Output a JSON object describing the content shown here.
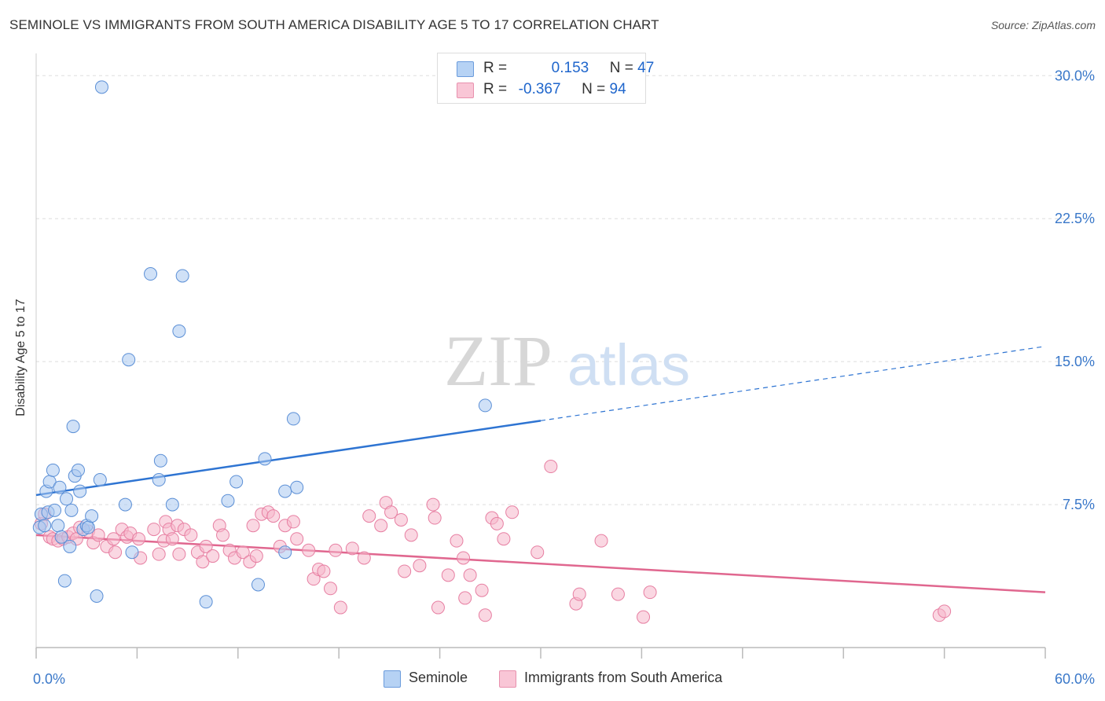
{
  "header": {
    "title": "SEMINOLE VS IMMIGRANTS FROM SOUTH AMERICA DISABILITY AGE 5 TO 17 CORRELATION CHART",
    "source": "Source: ZipAtlas.com"
  },
  "watermark": {
    "zip": "ZIP",
    "atlas": "atlas"
  },
  "legend": {
    "rows": [
      {
        "r_label": "R =",
        "r_value": "0.153",
        "n_label": "N =",
        "n_value": "47"
      },
      {
        "r_label": "R =",
        "r_value": "-0.367",
        "n_label": "N =",
        "n_value": "94"
      }
    ]
  },
  "bottom_legend": {
    "seminole": "Seminole",
    "immigrants": "Immigrants from South America"
  },
  "colors": {
    "seminole_fill": "#a9c9f1",
    "seminole_stroke": "#5b8fd6",
    "seminole_line": "#2e74d2",
    "immigrants_fill": "#f6b6cb",
    "immigrants_stroke": "#e77fa2",
    "immigrants_line": "#e0678f",
    "tick_text": "#3a78c9",
    "grid": "#dddddd"
  },
  "chart_data": {
    "type": "scatter",
    "title": "SEMINOLE VS IMMIGRANTS FROM SOUTH AMERICA DISABILITY AGE 5 TO 17 CORRELATION CHART",
    "xlabel": "",
    "ylabel": "Disability Age 5 to 17",
    "xlim": [
      0,
      60
    ],
    "ylim": [
      0,
      31
    ],
    "x_tick_labels": [
      "0.0%",
      "60.0%"
    ],
    "y_ticks": [
      7.5,
      15.0,
      22.5,
      30.0
    ],
    "y_tick_labels": [
      "7.5%",
      "15.0%",
      "22.5%",
      "30.0%"
    ],
    "grid": true,
    "legend_position": "top-center",
    "series": [
      {
        "name": "Seminole",
        "points": [
          [
            0.2,
            6.3
          ],
          [
            0.3,
            7.0
          ],
          [
            0.5,
            6.4
          ],
          [
            0.6,
            8.2
          ],
          [
            0.7,
            7.1
          ],
          [
            0.8,
            8.7
          ],
          [
            1.0,
            9.3
          ],
          [
            1.1,
            7.2
          ],
          [
            1.3,
            6.4
          ],
          [
            1.4,
            8.4
          ],
          [
            1.5,
            5.8
          ],
          [
            1.7,
            3.5
          ],
          [
            1.8,
            7.8
          ],
          [
            2.0,
            5.3
          ],
          [
            2.1,
            7.2
          ],
          [
            2.2,
            11.6
          ],
          [
            2.3,
            9.0
          ],
          [
            2.5,
            9.3
          ],
          [
            2.6,
            8.2
          ],
          [
            2.8,
            6.2
          ],
          [
            3.0,
            6.4
          ],
          [
            3.1,
            6.3
          ],
          [
            3.3,
            6.9
          ],
          [
            3.6,
            2.7
          ],
          [
            3.8,
            8.8
          ],
          [
            3.9,
            29.4
          ],
          [
            5.3,
            7.5
          ],
          [
            5.5,
            15.1
          ],
          [
            5.7,
            5.0
          ],
          [
            6.8,
            19.6
          ],
          [
            7.3,
            8.8
          ],
          [
            7.4,
            9.8
          ],
          [
            8.1,
            7.5
          ],
          [
            8.5,
            16.6
          ],
          [
            8.7,
            19.5
          ],
          [
            10.1,
            2.4
          ],
          [
            11.4,
            7.7
          ],
          [
            11.9,
            8.7
          ],
          [
            13.2,
            3.3
          ],
          [
            13.6,
            9.9
          ],
          [
            14.8,
            8.2
          ],
          [
            14.8,
            5.0
          ],
          [
            15.3,
            12.0
          ],
          [
            15.5,
            8.4
          ],
          [
            26.7,
            12.7
          ]
        ],
        "trend": {
          "x0": 0,
          "y0": 8.0,
          "x1": 30,
          "y1": 11.9,
          "dashed_to": {
            "x": 60,
            "y": 15.8
          }
        }
      },
      {
        "name": "Immigrants from South America",
        "points": [
          [
            0.3,
            6.5
          ],
          [
            0.5,
            7.0
          ],
          [
            0.8,
            5.8
          ],
          [
            1.0,
            5.7
          ],
          [
            1.3,
            5.6
          ],
          [
            1.6,
            5.7
          ],
          [
            1.9,
            5.8
          ],
          [
            2.2,
            6.0
          ],
          [
            2.4,
            5.7
          ],
          [
            2.6,
            6.3
          ],
          [
            3.1,
            6.1
          ],
          [
            3.4,
            5.5
          ],
          [
            3.7,
            5.9
          ],
          [
            4.2,
            5.3
          ],
          [
            4.6,
            5.7
          ],
          [
            4.7,
            5.0
          ],
          [
            5.1,
            6.2
          ],
          [
            5.4,
            5.8
          ],
          [
            5.6,
            6.0
          ],
          [
            6.1,
            5.7
          ],
          [
            6.2,
            4.7
          ],
          [
            7.0,
            6.2
          ],
          [
            7.3,
            4.9
          ],
          [
            7.6,
            5.6
          ],
          [
            7.7,
            6.6
          ],
          [
            7.9,
            6.2
          ],
          [
            8.1,
            5.7
          ],
          [
            8.4,
            6.4
          ],
          [
            8.5,
            4.9
          ],
          [
            8.8,
            6.2
          ],
          [
            9.2,
            5.9
          ],
          [
            9.6,
            5.0
          ],
          [
            9.9,
            4.5
          ],
          [
            10.1,
            5.3
          ],
          [
            10.5,
            4.8
          ],
          [
            10.9,
            6.4
          ],
          [
            11.1,
            5.9
          ],
          [
            11.5,
            5.1
          ],
          [
            11.8,
            4.7
          ],
          [
            12.3,
            5.0
          ],
          [
            12.7,
            4.5
          ],
          [
            12.9,
            6.4
          ],
          [
            13.1,
            4.8
          ],
          [
            13.4,
            7.0
          ],
          [
            13.8,
            7.1
          ],
          [
            14.1,
            6.9
          ],
          [
            14.5,
            5.3
          ],
          [
            14.8,
            6.4
          ],
          [
            15.3,
            6.6
          ],
          [
            15.5,
            5.7
          ],
          [
            16.2,
            5.1
          ],
          [
            16.5,
            3.6
          ],
          [
            16.8,
            4.1
          ],
          [
            17.1,
            4.0
          ],
          [
            17.5,
            3.1
          ],
          [
            17.8,
            5.1
          ],
          [
            18.1,
            2.1
          ],
          [
            18.8,
            5.2
          ],
          [
            19.5,
            4.7
          ],
          [
            19.8,
            6.9
          ],
          [
            20.5,
            6.4
          ],
          [
            20.8,
            7.6
          ],
          [
            21.1,
            7.1
          ],
          [
            21.7,
            6.7
          ],
          [
            21.9,
            4.0
          ],
          [
            22.3,
            5.9
          ],
          [
            22.8,
            4.3
          ],
          [
            23.6,
            7.5
          ],
          [
            23.7,
            6.8
          ],
          [
            23.9,
            2.1
          ],
          [
            24.5,
            3.8
          ],
          [
            25.0,
            5.6
          ],
          [
            25.4,
            4.7
          ],
          [
            25.5,
            2.6
          ],
          [
            25.8,
            3.8
          ],
          [
            26.5,
            3.0
          ],
          [
            26.7,
            1.7
          ],
          [
            27.1,
            6.8
          ],
          [
            27.4,
            6.5
          ],
          [
            27.8,
            5.7
          ],
          [
            28.3,
            7.1
          ],
          [
            29.8,
            5.0
          ],
          [
            30.6,
            9.5
          ],
          [
            32.1,
            2.3
          ],
          [
            32.3,
            2.8
          ],
          [
            33.6,
            5.6
          ],
          [
            34.6,
            2.8
          ],
          [
            36.1,
            1.6
          ],
          [
            36.5,
            2.9
          ],
          [
            53.7,
            1.7
          ],
          [
            54.0,
            1.9
          ]
        ],
        "trend": {
          "x0": 0,
          "y0": 5.9,
          "x1": 60,
          "y1": 2.9
        }
      }
    ]
  }
}
